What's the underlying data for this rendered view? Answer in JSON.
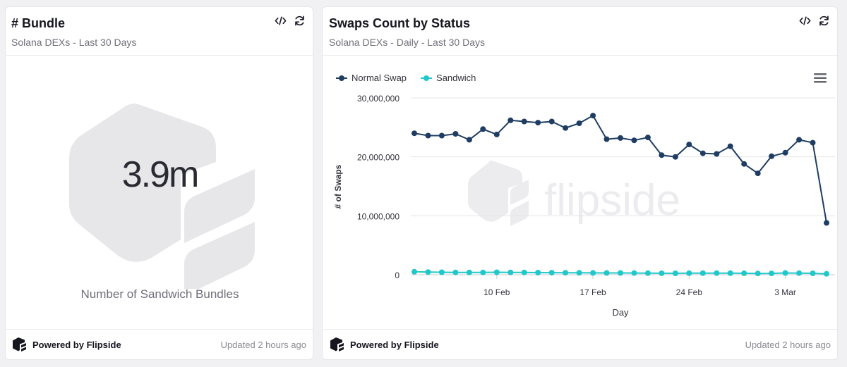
{
  "left_card": {
    "title": "# Bundle",
    "subtitle": "Solana DEXs - Last 30 Days",
    "value": "3.9m",
    "label": "Number of Sandwich Bundles",
    "powered_by": "Powered by Flipside",
    "updated": "Updated 2 hours ago"
  },
  "right_card": {
    "title": "Swaps Count by Status",
    "subtitle": "Solana DEXs - Daily - Last 30 Days",
    "powered_by": "Powered by Flipside",
    "updated": "Updated 2 hours ago",
    "watermark": "flipside"
  },
  "icons": {
    "embed": "code-icon",
    "refresh": "refresh-icon",
    "menu": "hamburger-menu-icon",
    "logo": "flipside-logo-icon"
  },
  "colors": {
    "normal_swap": "#1f3d63",
    "sandwich": "#21c7c9",
    "grid": "#e4e4e8"
  },
  "chart_data": {
    "type": "line",
    "x": [
      "2025-02-04",
      "2025-02-05",
      "2025-02-06",
      "2025-02-07",
      "2025-02-08",
      "2025-02-09",
      "2025-02-10",
      "2025-02-11",
      "2025-02-12",
      "2025-02-13",
      "2025-02-14",
      "2025-02-15",
      "2025-02-16",
      "2025-02-17",
      "2025-02-18",
      "2025-02-19",
      "2025-02-20",
      "2025-02-21",
      "2025-02-22",
      "2025-02-23",
      "2025-02-24",
      "2025-02-25",
      "2025-02-26",
      "2025-02-27",
      "2025-02-28",
      "2025-03-01",
      "2025-03-02",
      "2025-03-03",
      "2025-03-04",
      "2025-03-05",
      "2025-03-06"
    ],
    "series": [
      {
        "name": "Normal Swap",
        "values": [
          24000000,
          23600000,
          23600000,
          23900000,
          22900000,
          24700000,
          23800000,
          26200000,
          26000000,
          25800000,
          26000000,
          24900000,
          25700000,
          27000000,
          23000000,
          23200000,
          22800000,
          23300000,
          20300000,
          20000000,
          22100000,
          20600000,
          20500000,
          21800000,
          18800000,
          17200000,
          20100000,
          20700000,
          22900000,
          22400000,
          8800000
        ]
      },
      {
        "name": "Sandwich",
        "values": [
          500000,
          450000,
          420000,
          400000,
          380000,
          380000,
          420000,
          400000,
          380000,
          360000,
          350000,
          330000,
          320000,
          310000,
          300000,
          300000,
          290000,
          280000,
          250000,
          240000,
          260000,
          280000,
          270000,
          260000,
          250000,
          220000,
          230000,
          300000,
          270000,
          240000,
          150000
        ]
      }
    ],
    "xticks": [
      {
        "x": "2025-02-10",
        "label": "10 Feb"
      },
      {
        "x": "2025-02-17",
        "label": "17 Feb"
      },
      {
        "x": "2025-02-24",
        "label": "24 Feb"
      },
      {
        "x": "2025-03-03",
        "label": "3 Mar"
      }
    ],
    "yticks": [
      "0",
      "10,000,000",
      "20,000,000",
      "30,000,000"
    ],
    "ylim": [
      0,
      30000000
    ],
    "xlabel": "Day",
    "ylabel": "# of Swaps",
    "grid": true,
    "legend": "top-left"
  }
}
